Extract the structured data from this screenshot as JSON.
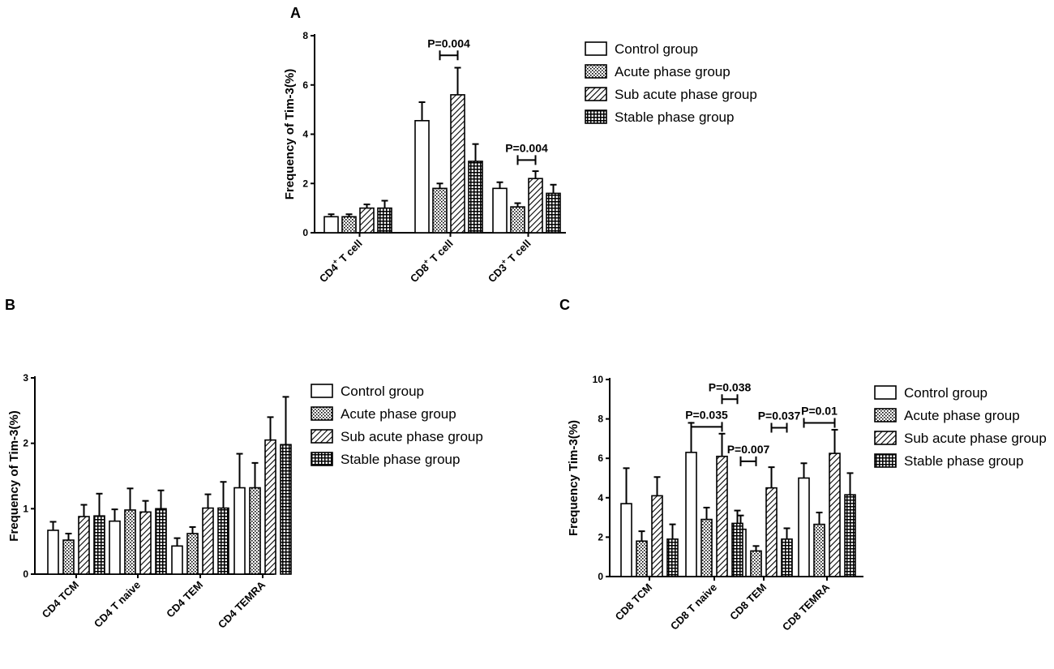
{
  "chart_data": [
    {
      "panel": "A",
      "type": "bar",
      "ylabel": "Frequency of Tim-3(%)",
      "ylim": [
        0,
        8
      ],
      "yticks": [
        0,
        2,
        4,
        6,
        8
      ],
      "categories": [
        {
          "base": "CD4",
          "sup": "+",
          "rest": " T cell"
        },
        {
          "base": "CD8",
          "sup": "+",
          "rest": "  T cell"
        },
        {
          "base": "CD3",
          "sup": "+",
          "rest": "  T cell"
        }
      ],
      "series": [
        {
          "name": "Control group",
          "pattern": "empty",
          "values": [
            0.65,
            4.55,
            1.8
          ],
          "errors": [
            0.1,
            0.75,
            0.25
          ]
        },
        {
          "name": "Acute phase group",
          "pattern": "dots",
          "values": [
            0.65,
            1.8,
            1.05
          ],
          "errors": [
            0.1,
            0.2,
            0.15
          ]
        },
        {
          "name": "Sub acute phase group",
          "pattern": "diag",
          "values": [
            1.0,
            5.6,
            2.2
          ],
          "errors": [
            0.15,
            1.1,
            0.3
          ]
        },
        {
          "name": "Stable phase group",
          "pattern": "grid",
          "values": [
            1.0,
            2.9,
            1.6
          ],
          "errors": [
            0.3,
            0.7,
            0.35
          ]
        }
      ],
      "annotations": [
        {
          "text": "P=0.004",
          "category": 1,
          "from_series": 1,
          "to_series": 2,
          "y": 7.2
        },
        {
          "text": "P=0.004",
          "category": 2,
          "from_series": 1,
          "to_series": 2,
          "y": 2.95
        }
      ]
    },
    {
      "panel": "B",
      "type": "bar",
      "ylabel": "Frequency of Tim-3(%)",
      "ylim": [
        0,
        3
      ],
      "yticks": [
        0,
        1,
        2,
        3
      ],
      "categories": [
        "CD4 TCM",
        "CD4 T naive",
        "CD4 TEM",
        "CD4 TEMRA"
      ],
      "series": [
        {
          "name": "Control group",
          "pattern": "empty",
          "values": [
            0.67,
            0.81,
            0.43,
            1.32
          ],
          "errors": [
            0.13,
            0.18,
            0.12,
            0.52
          ]
        },
        {
          "name": "Acute phase group",
          "pattern": "dots",
          "values": [
            0.52,
            0.98,
            0.62,
            1.32
          ],
          "errors": [
            0.1,
            0.33,
            0.1,
            0.38
          ]
        },
        {
          "name": "Sub acute phase group",
          "pattern": "diag",
          "values": [
            0.88,
            0.95,
            1.01,
            2.05
          ],
          "errors": [
            0.18,
            0.17,
            0.21,
            0.35
          ]
        },
        {
          "name": "Stable phase group",
          "pattern": "grid",
          "values": [
            0.89,
            1.0,
            1.01,
            1.98
          ],
          "errors": [
            0.34,
            0.28,
            0.4,
            0.73
          ]
        }
      ],
      "annotations": []
    },
    {
      "panel": "C",
      "type": "bar",
      "ylabel": "Frequency Tim-3(%)",
      "ylim": [
        0,
        10
      ],
      "yticks": [
        0,
        2,
        4,
        6,
        8,
        10
      ],
      "categories": [
        "CD8 TCM",
        "CD8 T naive",
        "CD8 TEM",
        "CD8 TEMRA"
      ],
      "series": [
        {
          "name": "Control group",
          "pattern": "empty",
          "values": [
            3.7,
            6.3,
            2.4,
            5.0
          ],
          "errors": [
            1.8,
            1.5,
            0.7,
            0.75
          ]
        },
        {
          "name": "Acute phase group",
          "pattern": "dots",
          "values": [
            1.8,
            2.9,
            1.3,
            2.65
          ],
          "errors": [
            0.5,
            0.6,
            0.25,
            0.6
          ]
        },
        {
          "name": "Sub acute phase group",
          "pattern": "diag",
          "values": [
            4.1,
            6.1,
            4.5,
            6.25
          ],
          "errors": [
            0.95,
            1.15,
            1.05,
            1.2
          ]
        },
        {
          "name": "Stable phase group",
          "pattern": "grid",
          "values": [
            1.9,
            2.7,
            1.9,
            4.15
          ],
          "errors": [
            0.75,
            0.65,
            0.55,
            1.1
          ]
        }
      ],
      "annotations": [
        {
          "text": "P=0.035",
          "category": 1,
          "from_series": 0,
          "to_series": 2,
          "y": 7.6
        },
        {
          "text": "P=0.038",
          "category": 1,
          "from_series": 2,
          "to_series": 3,
          "y": 9.0
        },
        {
          "text": "P=0.007",
          "category": 2,
          "from_series": 0,
          "to_series": 1,
          "y": 5.85
        },
        {
          "text": "P=0.037",
          "category": 2,
          "from_series": 2,
          "to_series": 3,
          "y": 7.55
        },
        {
          "text": "P=0.01",
          "category": 3,
          "from_series": 0,
          "to_series": 2,
          "y": 7.8
        }
      ]
    }
  ]
}
